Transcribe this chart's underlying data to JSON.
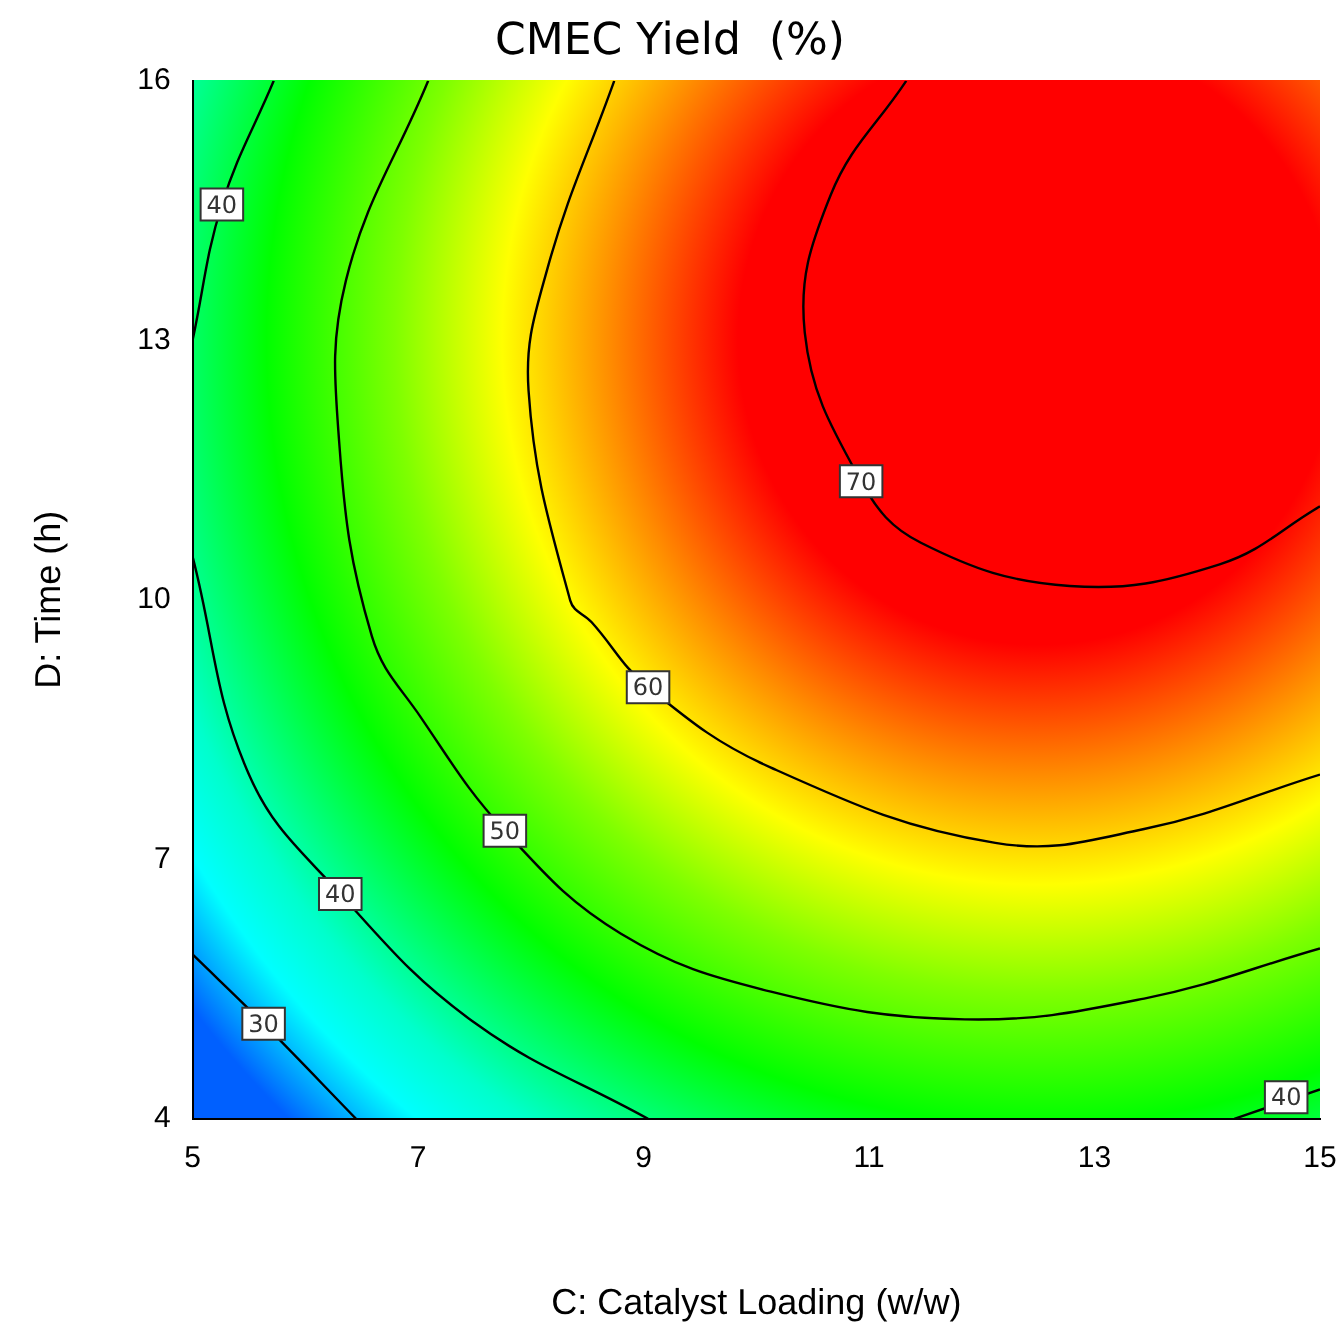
{
  "chart_data": {
    "type": "line",
    "title": "CMEC Yield  (%)",
    "xlabel": "C: Catalyst Loading (w/w)",
    "ylabel": "D: Time (h)",
    "xlim": [
      5,
      15
    ],
    "xticks": [
      5,
      7,
      9,
      11,
      13,
      15
    ],
    "ylim": [
      4,
      16
    ],
    "yticks": [
      4,
      7,
      10,
      13,
      16
    ],
    "grid": false,
    "legend": false,
    "marker": "none",
    "line_style": "solid",
    "series": [
      {
        "color": "#000000",
        "x": [
          5,
          5.63,
          6.45
        ],
        "values": [
          5.9,
          5.1,
          4
        ]
      },
      {
        "color": "#000000",
        "x": [
          5.72,
          5.26,
          5
        ],
        "values": [
          16,
          14.57,
          13.0
        ]
      },
      {
        "color": "#000000",
        "x": [
          5,
          5.5,
          6.31,
          7.48,
          9.04
        ],
        "values": [
          10.5,
          7.98,
          6.6,
          5.13,
          4
        ]
      },
      {
        "color": "#000000",
        "x": [
          14.24,
          15
        ],
        "values": [
          4,
          4.34
        ]
      },
      {
        "color": "#000000",
        "x": [
          7.09,
          6.36,
          6.3,
          6.59,
          7.02,
          7.77,
          8.8,
          10.13,
          11.85,
          13.44,
          15
        ],
        "values": [
          16,
          13.69,
          11.83,
          9.58,
          8.65,
          7.33,
          6.14,
          5.47,
          5.15,
          5.39,
          5.97
        ]
      },
      {
        "color": "#000000",
        "x": [
          8.74,
          8.15,
          7.98,
          8.35,
          8.54,
          9.04,
          10.13,
          12.12,
          13.44,
          15
        ],
        "values": [
          16,
          13.84,
          12.42,
          9.99,
          9.74,
          8.99,
          8.06,
          7.19,
          7.35,
          7.98
        ]
      },
      {
        "color": "#000000",
        "x": [
          11.33,
          10.66,
          10.43,
          10.93,
          11.46,
          12.78,
          14.11,
          15
        ],
        "values": [
          16,
          14.68,
          13.09,
          11.37,
          10.66,
          10.16,
          10.41,
          11.08
        ]
      }
    ],
    "annotations": [
      {
        "text": "30",
        "x": 5.63,
        "y": 5.1
      },
      {
        "text": "40",
        "x": 5.26,
        "y": 14.57
      },
      {
        "text": "40",
        "x": 6.31,
        "y": 6.6
      },
      {
        "text": "40",
        "x": 14.7,
        "y": 4.25
      },
      {
        "text": "50",
        "x": 7.77,
        "y": 7.33
      },
      {
        "text": "60",
        "x": 9.04,
        "y": 8.99
      },
      {
        "text": "70",
        "x": 10.93,
        "y": 11.37
      }
    ]
  }
}
